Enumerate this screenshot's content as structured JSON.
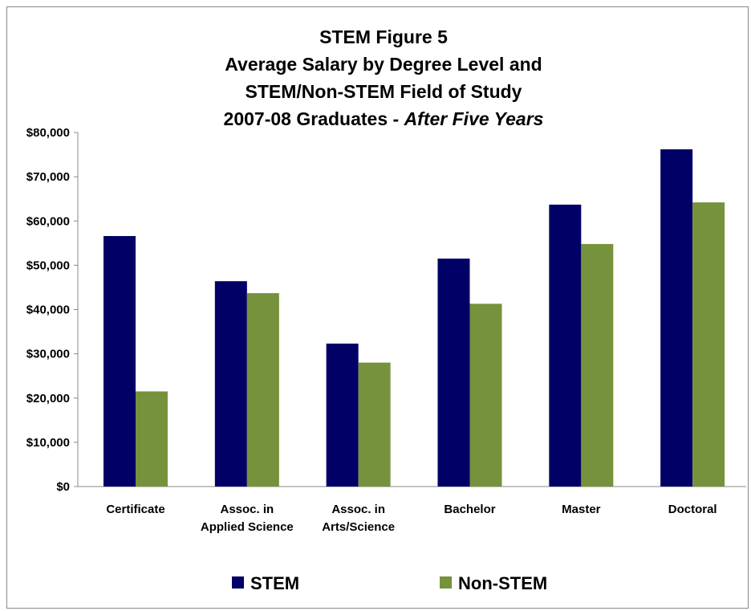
{
  "chart_data": {
    "type": "bar",
    "title_lines": [
      {
        "text": "STEM Figure 5",
        "parts": [
          {
            "text": "STEM Figure 5",
            "italic": false
          }
        ]
      },
      {
        "text": "Average Salary by Degree Level and",
        "parts": [
          {
            "text": "Average Salary by Degree Level and",
            "italic": false
          }
        ]
      },
      {
        "text": "STEM/Non-STEM Field of Study",
        "parts": [
          {
            "text": "STEM/Non-STEM Field of Study",
            "italic": false
          }
        ]
      },
      {
        "text": "2007-08 Graduates  -  After Five Years",
        "parts": [
          {
            "text": "2007-08 Graduates  -  ",
            "italic": false
          },
          {
            "text": "After Five Years",
            "italic": true
          }
        ]
      }
    ],
    "categories": [
      [
        "Certificate"
      ],
      [
        "Assoc. in",
        "Applied Science"
      ],
      [
        "Assoc. in",
        "Arts/Science"
      ],
      [
        "Bachelor"
      ],
      [
        "Master"
      ],
      [
        "Doctoral"
      ]
    ],
    "series": [
      {
        "name": "STEM",
        "color": "#000066",
        "values": [
          56600,
          46400,
          32300,
          51500,
          63700,
          76200
        ]
      },
      {
        "name": "Non-STEM",
        "color": "#76923C",
        "values": [
          21500,
          43700,
          28000,
          41300,
          54800,
          64200
        ]
      }
    ],
    "y_ticks": [
      {
        "value": 0,
        "label": "$0"
      },
      {
        "value": 10000,
        "label": "$10,000"
      },
      {
        "value": 20000,
        "label": "$20,000"
      },
      {
        "value": 30000,
        "label": "$30,000"
      },
      {
        "value": 40000,
        "label": "$40,000"
      },
      {
        "value": 50000,
        "label": "$50,000"
      },
      {
        "value": 60000,
        "label": "$60,000"
      },
      {
        "value": 70000,
        "label": "$70,000"
      },
      {
        "value": 80000,
        "label": "$80,000"
      }
    ],
    "ylim": [
      0,
      80000
    ],
    "grid": false,
    "legend_position": "bottom"
  }
}
